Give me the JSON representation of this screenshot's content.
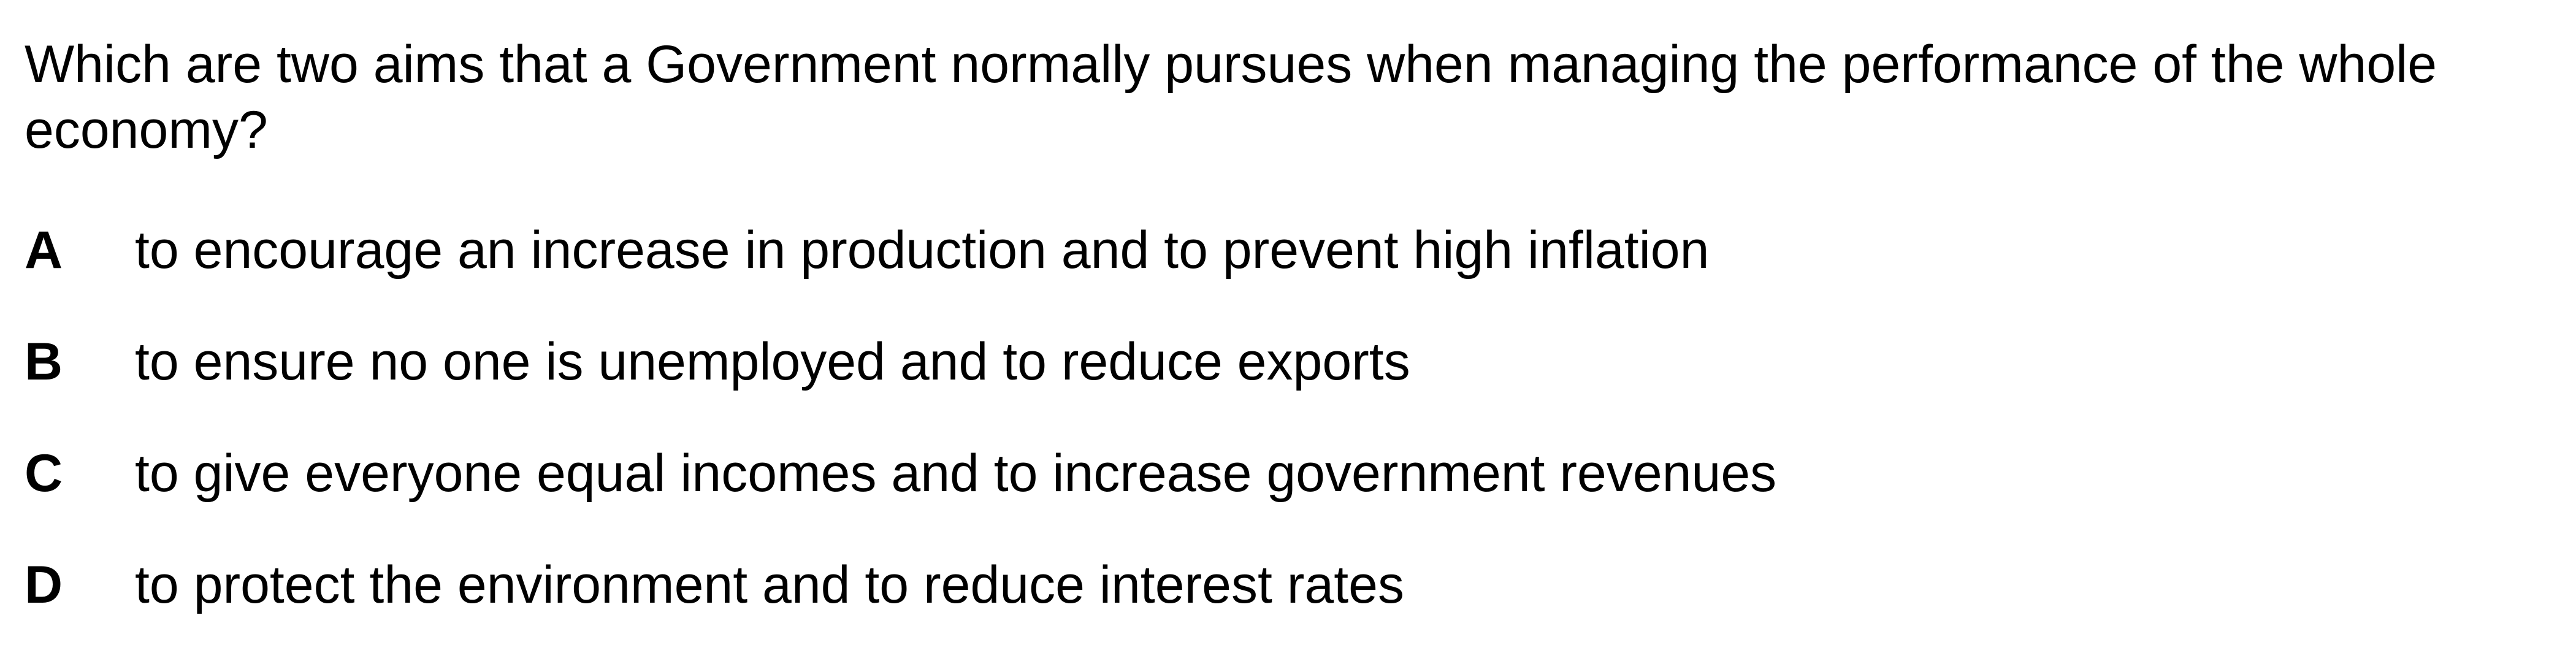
{
  "question": {
    "text": "Which are two aims that a Government normally pursues when managing the performance of the whole economy?"
  },
  "options": [
    {
      "letter": "A",
      "text": "to encourage an increase in production and to prevent high inflation"
    },
    {
      "letter": "B",
      "text": "to ensure no one is unemployed and to reduce exports"
    },
    {
      "letter": "C",
      "text": "to give everyone equal incomes and to increase government revenues"
    },
    {
      "letter": "D",
      "text": "to protect the environment and to reduce interest rates"
    }
  ]
}
